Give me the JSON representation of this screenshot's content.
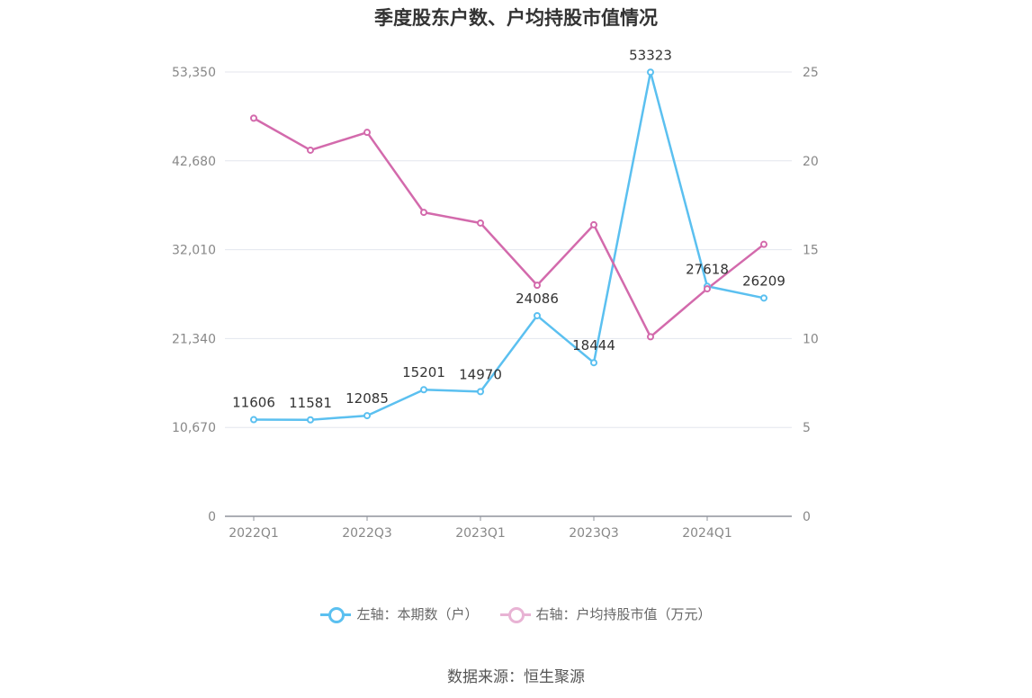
{
  "chart_data": {
    "type": "line",
    "title": "季度股东户数、户均持股市值情况",
    "categories": [
      "2022Q1",
      "2022Q2",
      "2022Q3",
      "2022Q4",
      "2023Q1",
      "2023Q2",
      "2023Q3",
      "2023Q4",
      "2024Q1",
      "2024Q2"
    ],
    "x_tick_labels": [
      "2022Q1",
      "2022Q3",
      "2023Q1",
      "2023Q3",
      "2024Q1"
    ],
    "left_axis": {
      "ticks": [
        "0",
        "10,670",
        "21,340",
        "32,010",
        "42,680",
        "53,350"
      ],
      "ylim": [
        0,
        53350
      ]
    },
    "right_axis": {
      "ticks": [
        "0",
        "5",
        "10",
        "15",
        "20",
        "25"
      ],
      "ylim": [
        0,
        25
      ]
    },
    "series": [
      {
        "name": "左轴：本期数（户）",
        "axis": "left",
        "color": "#5bc0f0",
        "values": [
          11606,
          11581,
          12085,
          15201,
          14970,
          24086,
          18444,
          53323,
          27618,
          26209
        ],
        "labels": [
          "11606",
          "11581",
          "12085",
          "15201",
          "14970",
          "24086",
          "18444",
          "53323",
          "27618",
          "26209"
        ]
      },
      {
        "name": "右轴：户均持股市值（万元）",
        "axis": "right",
        "color": "#d36aac",
        "values": [
          22.4,
          20.6,
          21.6,
          17.1,
          16.5,
          13.0,
          16.4,
          10.1,
          12.8,
          15.3
        ]
      }
    ],
    "grid": true,
    "legend_position": "bottom"
  },
  "source": "数据来源：恒生聚源"
}
